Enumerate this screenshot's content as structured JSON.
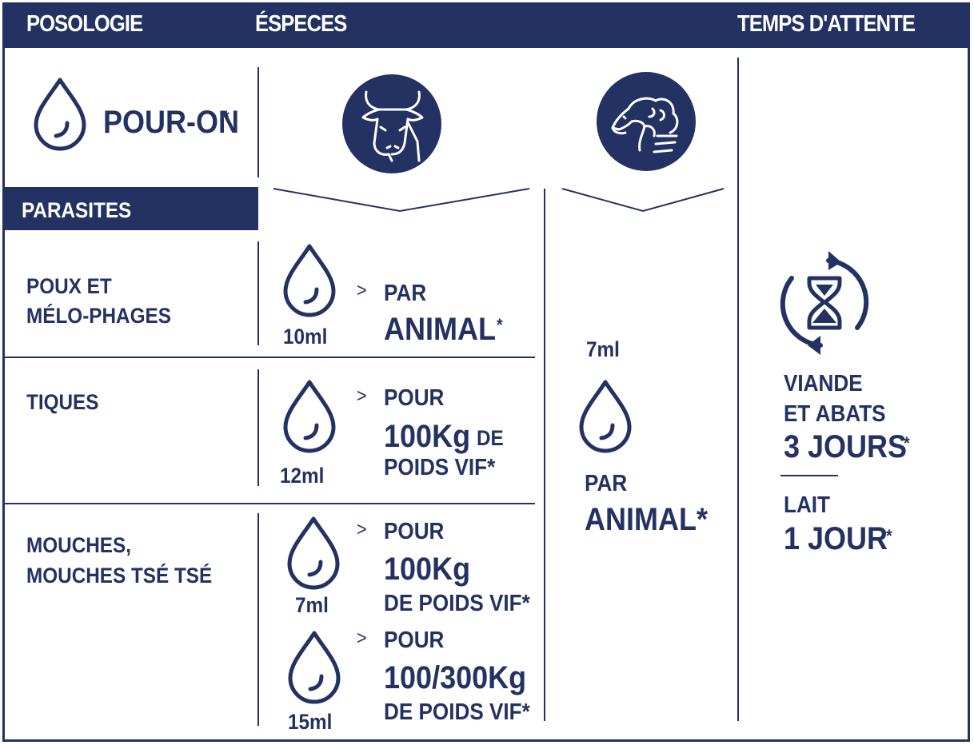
{
  "header": {
    "posologie": "POSOLOGIE",
    "especes": "ÉSPECES",
    "temps": "TEMPS D'ATTENTE"
  },
  "application": {
    "label": "POUR-ON",
    "star": "*",
    "icon": "drop-icon"
  },
  "species": {
    "cattle_icon": "cow-head-icon",
    "sheep_icon": "sheep-head-icon"
  },
  "parasites": {
    "title": "PARASITES",
    "rows": [
      {
        "line1": "POUX ET",
        "line2": "MÉLO-PHAGES"
      },
      {
        "line1": "TIQUES",
        "line2": ""
      },
      {
        "line1": "MOUCHES,",
        "line2": "MOUCHES TSÉ TSÉ"
      }
    ]
  },
  "cattle_doses": [
    {
      "volume": "10ml",
      "arrow": ">",
      "l1": "PAR",
      "l2": "ANIMAL",
      "l2star": "*",
      "l3": ""
    },
    {
      "volume": "12ml",
      "arrow": ">",
      "l1": "POUR",
      "l2": "100Kg",
      "l2suffix": "DE",
      "l3": "POIDS VIF*"
    },
    {
      "volume": "7ml",
      "arrow": ">",
      "l1": "POUR",
      "l2": "100Kg",
      "l3": "DE POIDS VIF*"
    },
    {
      "volume": "15ml",
      "arrow": ">",
      "l1": "POUR",
      "l2": "100/300Kg",
      "l3": "DE POIDS VIF*"
    }
  ],
  "sheep_dose": {
    "volume": "7ml",
    "l1": "PAR",
    "l2": "ANIMAL*"
  },
  "withdrawal": {
    "icon": "hourglass-refresh-icon",
    "meat_l1": "VIANDE",
    "meat_l2": "ET ABATS",
    "meat_days": "3 JOURS",
    "meat_star": "*",
    "milk_l1": "LAIT",
    "milk_days": "1 JOUR",
    "milk_star": "*"
  },
  "colors": {
    "navy": "#233262",
    "white": "#ffffff"
  }
}
